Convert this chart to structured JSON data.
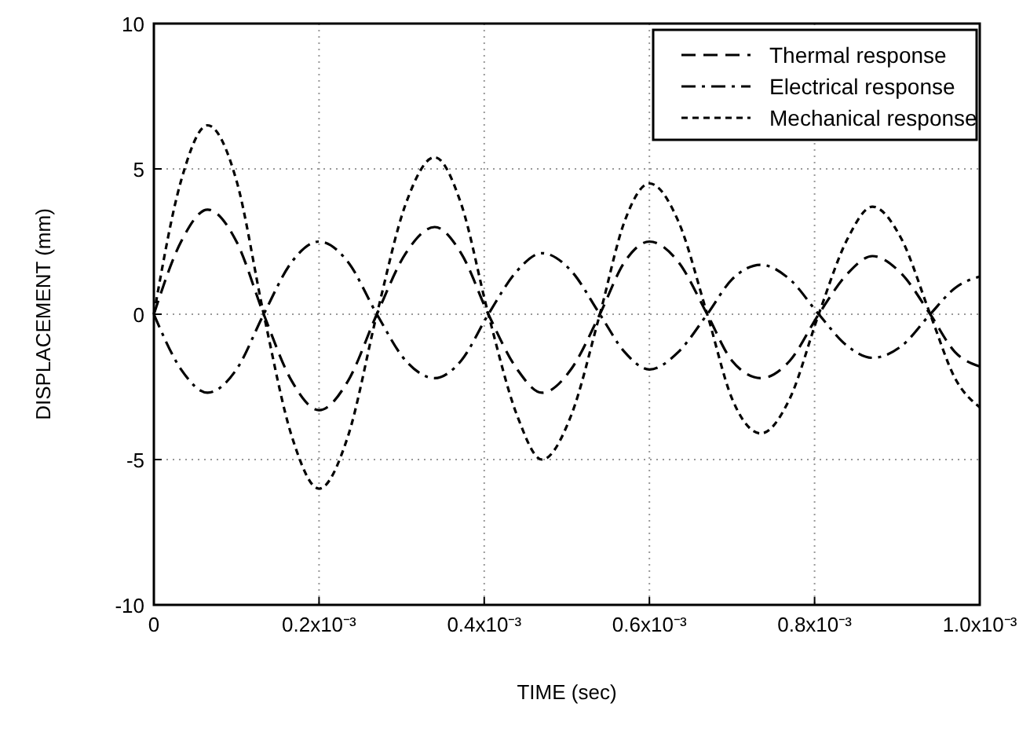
{
  "chart_data": {
    "type": "line",
    "xlabel": "TIME (sec)",
    "ylabel": "DISPLACEMENT (mm)",
    "x": [
      0,
      3.3e-05,
      6.5e-05,
      0.0001,
      0.000133,
      0.000167,
      0.0002,
      0.000235,
      0.00027,
      0.000305,
      0.00034,
      0.000372,
      0.000405,
      0.00044,
      0.00047,
      0.000505,
      0.00054,
      0.00057,
      0.0006,
      0.000635,
      0.00067,
      0.0007,
      0.000735,
      0.00077,
      0.000805,
      0.00084,
      0.00087,
      0.000905,
      0.00094,
      0.00097,
      0.001
    ],
    "series": [
      {
        "name": "Thermal response",
        "color": "#000000",
        "line_style": "dashed",
        "values": [
          0,
          2.5,
          3.6,
          2.5,
          0,
          -2.3,
          -3.3,
          -2.3,
          0,
          2.1,
          3.0,
          2.1,
          0,
          -1.9,
          -2.7,
          -1.9,
          0,
          1.8,
          2.5,
          1.8,
          0,
          -1.6,
          -2.2,
          -1.6,
          0,
          1.4,
          2.0,
          1.4,
          0,
          -1.3,
          -1.8
        ]
      },
      {
        "name": "Electrical response",
        "color": "#000000",
        "line_style": "dashdot",
        "values": [
          0,
          -1.9,
          -2.7,
          -1.9,
          0,
          1.8,
          2.5,
          1.8,
          0,
          -1.6,
          -2.2,
          -1.6,
          0,
          1.5,
          2.1,
          1.5,
          0,
          -1.3,
          -1.9,
          -1.3,
          0,
          1.2,
          1.7,
          1.2,
          0,
          -1.1,
          -1.5,
          -1.1,
          0,
          0.9,
          1.3
        ]
      },
      {
        "name": "Mechanical response",
        "color": "#000000",
        "line_style": "dotted",
        "values": [
          0,
          4.6,
          6.5,
          4.6,
          0,
          -4.2,
          -6.0,
          -4.2,
          0,
          3.8,
          5.4,
          3.8,
          0,
          -3.5,
          -5.0,
          -3.5,
          0,
          3.2,
          4.5,
          3.2,
          0,
          -2.9,
          -4.1,
          -2.9,
          0,
          2.6,
          3.7,
          2.6,
          0,
          -2.2,
          -3.2
        ]
      }
    ],
    "xlim": [
      0,
      0.001
    ],
    "xticks": [
      0,
      {
        "value": 0.0002,
        "label": "0.2x10⁻³"
      },
      {
        "value": 0.0004,
        "label": "0.4x10⁻³"
      },
      {
        "value": 0.0006,
        "label": "0.6x10⁻³"
      },
      {
        "value": 0.0008,
        "label": "0.8x10⁻³"
      },
      {
        "value": 0.001,
        "label": "1.0x10⁻³"
      }
    ],
    "ylim": [
      -10,
      10
    ],
    "yticks": [
      -10,
      -5,
      0,
      5,
      10
    ],
    "grid": true,
    "legend": "top right",
    "marker": "none"
  }
}
